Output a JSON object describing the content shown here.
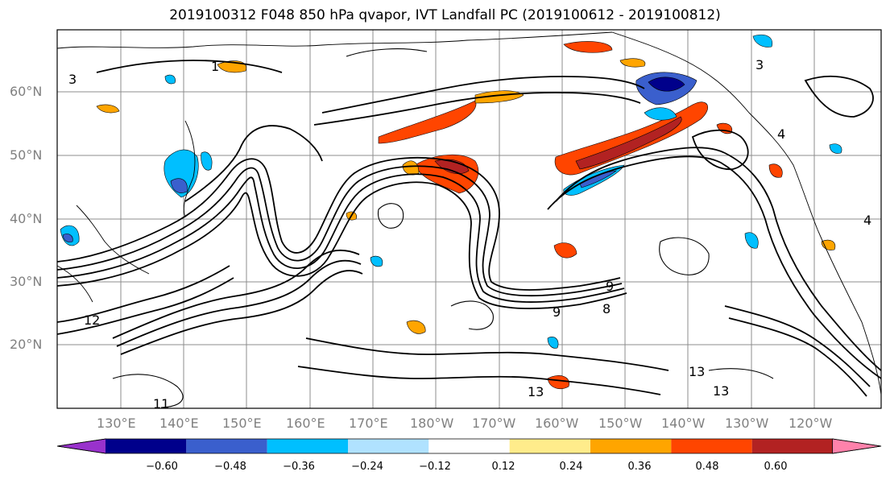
{
  "title": "2019100312 F048 850 hPa qvapor, IVT Landfall PC (2019100612 - 2019100812)",
  "axes": {
    "lat_labels": [
      "60°N",
      "50°N",
      "40°N",
      "30°N",
      "20°N"
    ],
    "lon_labels": [
      "130°E",
      "140°E",
      "150°E",
      "160°E",
      "170°E",
      "180°W",
      "170°W",
      "160°W",
      "150°W",
      "140°W",
      "130°W",
      "120°W"
    ]
  },
  "colorbar": {
    "tick_labels": [
      "−0.60",
      "−0.48",
      "−0.36",
      "−0.24",
      "−0.12",
      "0.12",
      "0.24",
      "0.36",
      "0.48",
      "0.60"
    ],
    "colors": [
      "#9932cc",
      "#00008b",
      "#3a5fcd",
      "#00bfff",
      "#b0e2ff",
      "#ffffff",
      "#ffec8b",
      "#ffa500",
      "#ff4500",
      "#b22222",
      "#ff82ab"
    ],
    "extend": "both"
  },
  "contour_labels": {
    "ridge_west": "12",
    "south_center": "13",
    "south_east": "13",
    "south_mid": "13",
    "low_west": "11",
    "e40": "4",
    "e_gulf": "4",
    "nw": "3",
    "ne": "3",
    "arctic": "1",
    "mid": "9",
    "c8": "8",
    "c9": "9"
  }
}
